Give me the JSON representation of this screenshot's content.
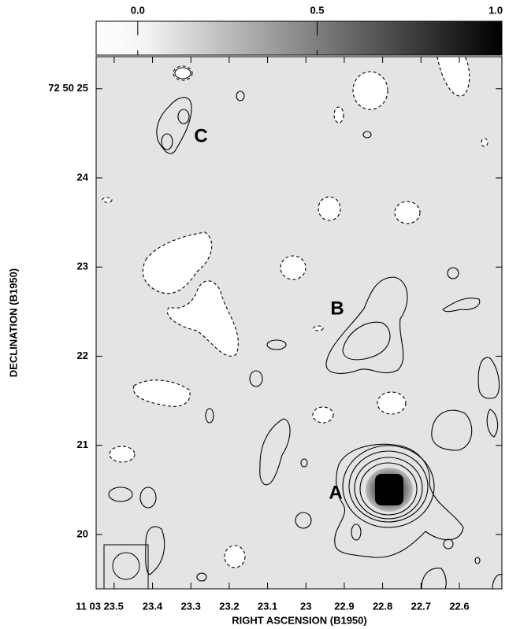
{
  "chart_data": {
    "type": "contour",
    "x_label": "RIGHT ASCENSION (B1950)",
    "y_label": "DECLINATION (B1950)",
    "xlim": [
      23.547,
      22.489
    ],
    "xticks": [
      {
        "value": 23.5,
        "label": "11 03 23.5"
      },
      23.4,
      23.3,
      23.2,
      23.1,
      23.0,
      22.9,
      22.8,
      22.7,
      22.6
    ],
    "ylim": [
      19.39,
      25.36
    ],
    "yticks": [
      20,
      21,
      22,
      23,
      24,
      {
        "value": 25,
        "label": "72 50 25"
      }
    ],
    "colorbar": {
      "lim": [
        -0.116,
        1.015
      ],
      "ticks": [
        {
          "value": 0,
          "label": "0.0"
        },
        0.5,
        {
          "value": 1,
          "label": "1.0"
        }
      ]
    },
    "annotations": [
      "A",
      "B",
      "C"
    ]
  }
}
